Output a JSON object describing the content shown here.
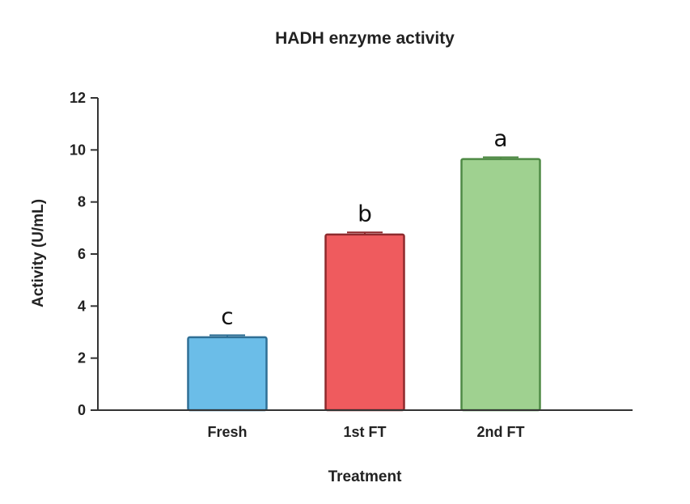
{
  "chart_data": {
    "type": "bar",
    "title": "HADH enzyme activity",
    "xlabel": "Treatment",
    "ylabel": "Activity (U/mL)",
    "categories": [
      "Fresh",
      "1st FT",
      "2nd FT"
    ],
    "values": [
      2.8,
      6.75,
      9.65
    ],
    "errors": [
      0.08,
      0.08,
      0.07
    ],
    "significance_labels": [
      "c",
      "b",
      "a"
    ],
    "colors": [
      "#6bbde8",
      "#ef5b5e",
      "#9fd190"
    ],
    "border_colors": [
      "#2f6f95",
      "#8e2a2d",
      "#4f8a45"
    ],
    "ylim": [
      0,
      12
    ],
    "yticks": [
      0,
      2,
      4,
      6,
      8,
      10,
      12
    ],
    "grid": false,
    "legend": "none"
  }
}
